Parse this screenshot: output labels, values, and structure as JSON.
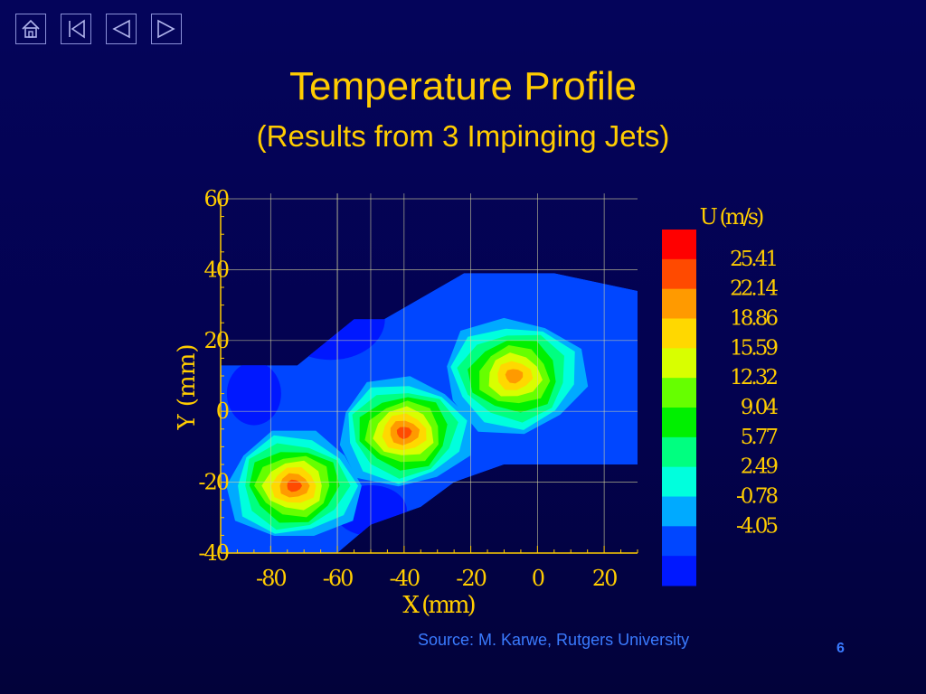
{
  "nav": {
    "icons": [
      "home-icon",
      "first-slide-icon",
      "previous-slide-icon",
      "next-slide-icon"
    ]
  },
  "slide": {
    "title": "Temperature Profile",
    "subtitle": "(Results from 3 Impinging Jets)",
    "source": "Source: M. Karwe, Rutgers University",
    "page_number": "6"
  },
  "colors": {
    "title": "#ffcc00",
    "source": "#3a7bff",
    "axes": "#ffcc00",
    "background": "#03034f"
  },
  "chart_data": {
    "type": "heatmap",
    "title": "",
    "xlabel": "X (mm)",
    "ylabel": "Y (mm)",
    "xlim": [
      -95,
      30
    ],
    "ylim": [
      -40,
      60
    ],
    "x_ticks": [
      "-80",
      "-60",
      "-40",
      "-20",
      "0",
      "20"
    ],
    "x_tick_values": [
      -80,
      -60,
      -40,
      -20,
      0,
      20
    ],
    "y_ticks": [
      "60",
      "40",
      "20",
      "0",
      "-20",
      "-40"
    ],
    "y_tick_values": [
      60,
      40,
      20,
      0,
      -20,
      -40
    ],
    "grid": true,
    "legend": {
      "title": "U (m/s)",
      "position": "right",
      "levels": [
        "25.41",
        "22.14",
        "18.86",
        "15.59",
        "12.32",
        "9.04",
        "5.77",
        "2.49",
        "-0.78",
        "-4.05"
      ],
      "colors": [
        "#ff0000",
        "#ff4a00",
        "#ff9a00",
        "#ffd800",
        "#d8ff00",
        "#66ff00",
        "#00f000",
        "#00ff80",
        "#00ffdd",
        "#00aaff",
        "#0046ff",
        "#0018ff"
      ]
    },
    "domain_outline": [
      [
        -95,
        13
      ],
      [
        -80,
        13
      ],
      [
        -72,
        13
      ],
      [
        -55,
        26
      ],
      [
        -50,
        26
      ],
      [
        -46,
        26
      ],
      [
        -22,
        39
      ],
      [
        5,
        39
      ],
      [
        30,
        34
      ],
      [
        30,
        -15
      ],
      [
        -10,
        -15
      ],
      [
        -25,
        -20
      ],
      [
        -35,
        -27
      ],
      [
        -50,
        -32
      ],
      [
        -60,
        -40
      ],
      [
        -95,
        -40
      ]
    ],
    "jets": [
      {
        "x": -73,
        "y": -21,
        "peak": "25.41"
      },
      {
        "x": -40,
        "y": -6,
        "peak": "25.41"
      },
      {
        "x": -7,
        "y": 10,
        "peak": "22.14"
      }
    ]
  }
}
